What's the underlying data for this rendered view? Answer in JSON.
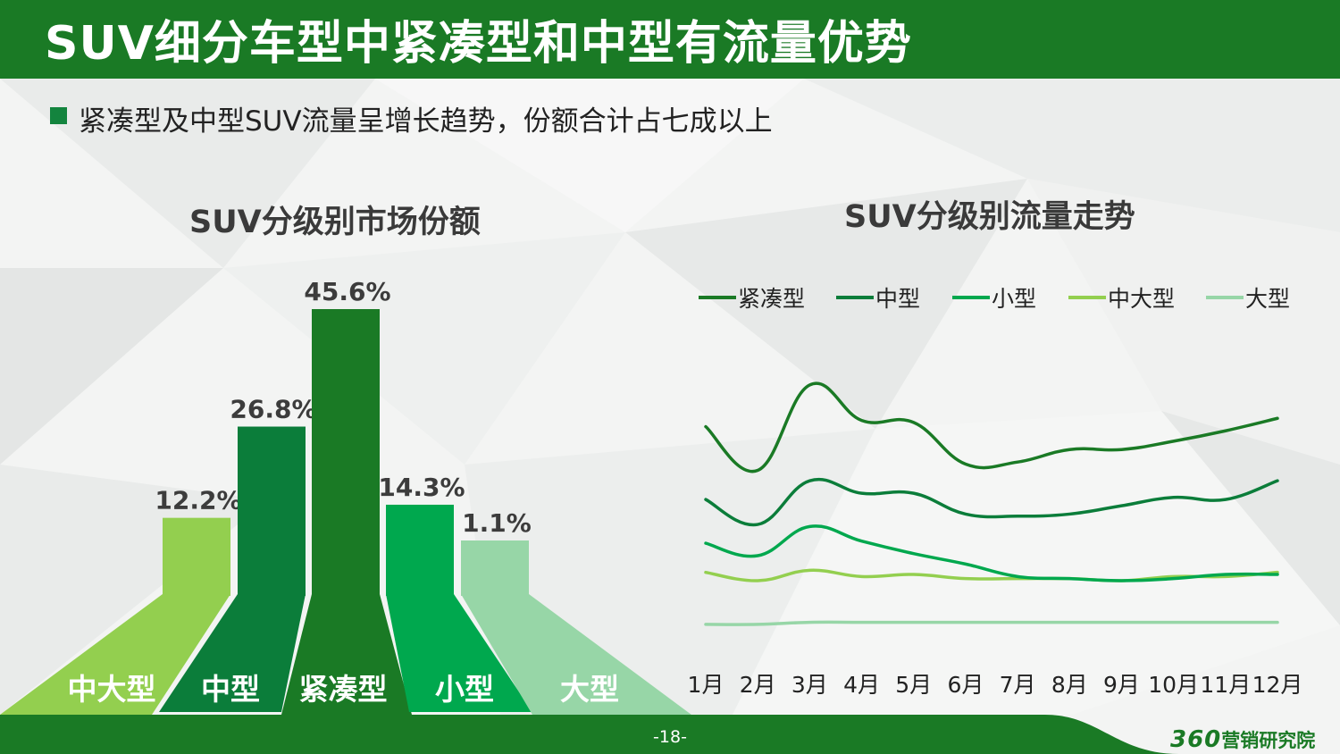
{
  "header": {
    "title": "SUV细分车型中紧凑型和中型有流量优势"
  },
  "subtitle": "紧凑型及中型SUV流量呈增长趋势，份额合计占七成以上",
  "footer": {
    "page": "-18-",
    "brand_number": "360",
    "brand_text": "营销研究院"
  },
  "colors": {
    "header_green": "#1a7a25",
    "compact": "#1a7a25",
    "mid": "#0b7d3a",
    "small": "#00a84e",
    "midlarge": "#93cf4f",
    "large": "#97d6a7"
  },
  "chart_data": [
    {
      "type": "bar",
      "title": "SUV分级别市场份额",
      "categories": [
        "中大型",
        "中型",
        "紧凑型",
        "小型",
        "大型"
      ],
      "values": [
        12.2,
        26.8,
        45.6,
        14.3,
        1.1
      ],
      "labels": [
        "12.2%",
        "26.8%",
        "45.6%",
        "14.3%",
        "1.1%"
      ],
      "colors": [
        "#93cf4f",
        "#0b7d3a",
        "#1a7a25",
        "#00a84e",
        "#97d6a7"
      ]
    },
    {
      "type": "line",
      "title": "SUV分级别流量走势",
      "categories": [
        "1月",
        "2月",
        "3月",
        "4月",
        "5月",
        "6月",
        "7月",
        "8月",
        "9月",
        "10月",
        "11月",
        "12月"
      ],
      "legend": "top",
      "series": [
        {
          "name": "紧凑型",
          "color": "#1a7a25",
          "values": [
            74,
            53,
            94,
            77,
            76,
            56,
            57,
            63,
            63,
            67,
            72,
            78
          ]
        },
        {
          "name": "中型",
          "color": "#0b7d3a",
          "values": [
            39,
            27,
            48,
            42,
            42,
            32,
            31,
            32,
            36,
            40,
            39,
            48
          ]
        },
        {
          "name": "小型",
          "color": "#00a84e",
          "values": [
            18,
            12,
            26,
            19,
            13,
            8,
            2,
            1,
            0,
            1,
            3,
            3
          ]
        },
        {
          "name": "中大型",
          "color": "#93cf4f",
          "values": [
            4,
            0,
            5,
            2,
            3,
            1,
            1,
            1,
            0,
            2,
            2,
            4
          ]
        },
        {
          "name": "大型",
          "color": "#97d6a7",
          "values": [
            -21,
            -21,
            -20,
            -20,
            -20,
            -20,
            -20,
            -20,
            -20,
            -20,
            -20,
            -20
          ]
        }
      ]
    }
  ]
}
